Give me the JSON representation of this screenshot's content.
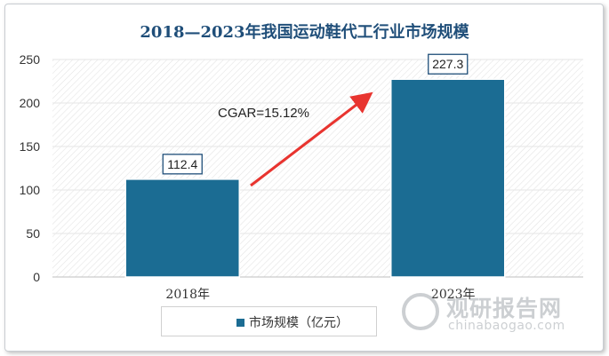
{
  "chart_data": {
    "type": "bar",
    "title": "2018—2023年我国运动鞋代工行业市场规模",
    "categories": [
      "2018年",
      "2023年"
    ],
    "series": [
      {
        "name": "市场规模（亿元）",
        "values": [
          112.4,
          227.3
        ]
      }
    ],
    "data_labels": [
      "112.4",
      "227.3"
    ],
    "ylim": [
      0,
      250
    ],
    "yticks": [
      0,
      50,
      100,
      150,
      200,
      250
    ],
    "annotation": "CGAR=15.12%",
    "grid": true,
    "legend_position": "bottom",
    "colors": {
      "bar": "#1b6c93",
      "arrow": "#e8342f",
      "title": "#1f4e79"
    }
  },
  "watermark": {
    "cn": "观研报告网",
    "en": "chinabaogao.com"
  }
}
